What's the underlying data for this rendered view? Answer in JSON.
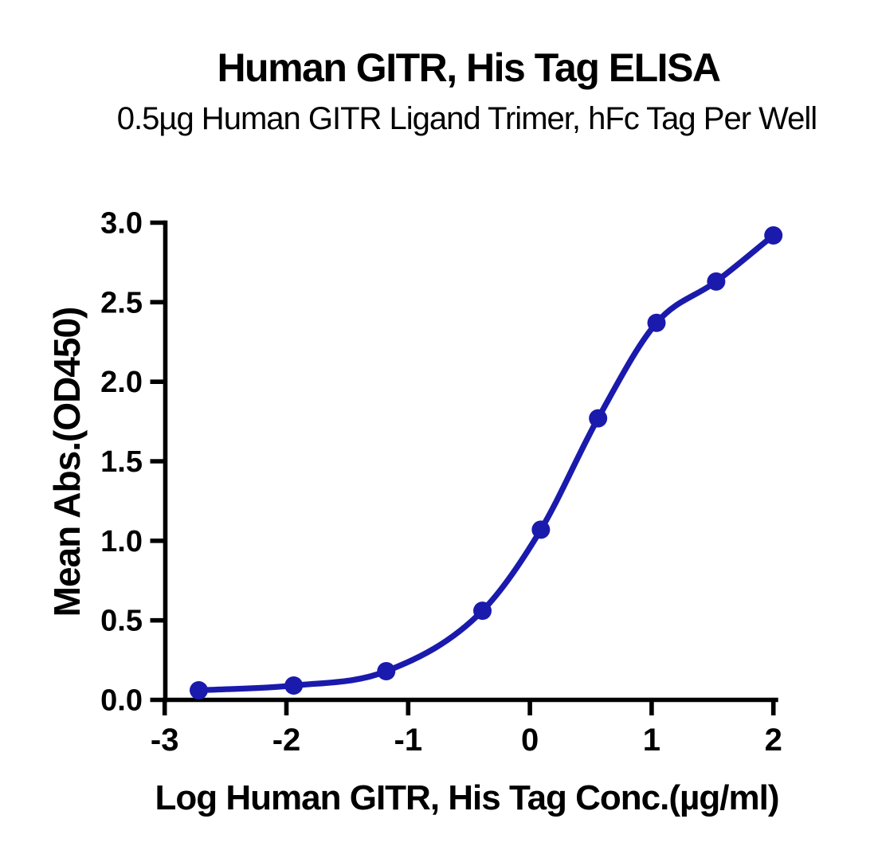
{
  "figure": {
    "background_color": "#ffffff"
  },
  "chart_data": {
    "type": "scatter",
    "title": "Human GITR, His Tag ELISA",
    "subtitle": "0.5µg Human GITR Ligand Trimer, hFc Tag Per Well",
    "xlabel": "Log Human GITR, His Tag Conc.(µg/ml)",
    "ylabel": "Mean Abs.(OD450)",
    "xlim": [
      -3,
      2
    ],
    "ylim": [
      0,
      3
    ],
    "grid": false,
    "legend": "none",
    "xticks": {
      "values": [
        -3,
        -2,
        -1,
        0,
        1,
        2
      ],
      "labels": [
        "-3",
        "-2",
        "-1",
        "0",
        "1",
        "2"
      ]
    },
    "yticks": {
      "values": [
        0,
        0.5,
        1,
        1.5,
        2,
        2.5,
        3
      ],
      "labels": [
        "0.0",
        "0.5",
        "1.0",
        "1.5",
        "2.0",
        "2.5",
        "3.0"
      ]
    },
    "series": [
      {
        "name": "Human GITR Ligand Trimer, hFc Tag",
        "x": [
          -2.72,
          -1.94,
          -1.18,
          -0.39,
          0.09,
          0.56,
          1.04,
          1.53,
          2.0
        ],
        "y": [
          0.06,
          0.09,
          0.18,
          0.56,
          1.07,
          1.77,
          2.37,
          2.63,
          2.92
        ],
        "fit": "4PL sigmoid (smooth curve through points)"
      }
    ],
    "colors": {
      "line": "#1a1aad",
      "marker": "#1a1aad",
      "axis": "#000000",
      "text": "#000000"
    }
  }
}
